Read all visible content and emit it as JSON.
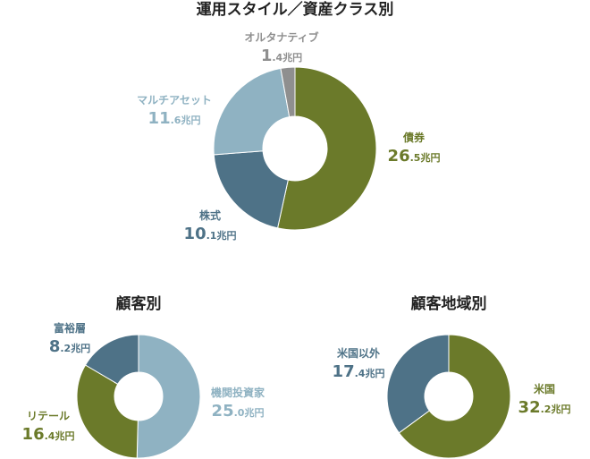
{
  "chart_data": [
    {
      "type": "pie",
      "title": "運用スタイル／資産クラス別",
      "unit": "兆円",
      "slices": [
        {
          "label": "債券",
          "int": "26",
          "dec": ".5",
          "value": 26.5,
          "color": "#6b7a2a"
        },
        {
          "label": "株式",
          "int": "10",
          "dec": ".1",
          "value": 10.1,
          "color": "#4e7287"
        },
        {
          "label": "マルチアセット",
          "int": "11",
          "dec": ".6",
          "value": 11.6,
          "color": "#8fb2c2"
        },
        {
          "label": "オルタナティブ",
          "int": "1",
          "dec": ".4",
          "value": 1.4,
          "color": "#8f8f8f"
        }
      ]
    },
    {
      "type": "pie",
      "title": "顧客別",
      "unit": "兆円",
      "slices": [
        {
          "label": "機関投資家",
          "int": "25",
          "dec": ".0",
          "value": 25.0,
          "color": "#8fb2c2"
        },
        {
          "label": "リテール",
          "int": "16",
          "dec": ".4",
          "value": 16.4,
          "color": "#6b7a2a"
        },
        {
          "label": "富裕層",
          "int": "8",
          "dec": ".2",
          "value": 8.2,
          "color": "#4e7287"
        }
      ]
    },
    {
      "type": "pie",
      "title": "顧客地域別",
      "unit": "兆円",
      "slices": [
        {
          "label": "米国",
          "int": "32",
          "dec": ".2",
          "value": 32.2,
          "color": "#6b7a2a"
        },
        {
          "label": "米国以外",
          "int": "17",
          "dec": ".4",
          "value": 17.4,
          "color": "#4e7287"
        }
      ]
    }
  ]
}
